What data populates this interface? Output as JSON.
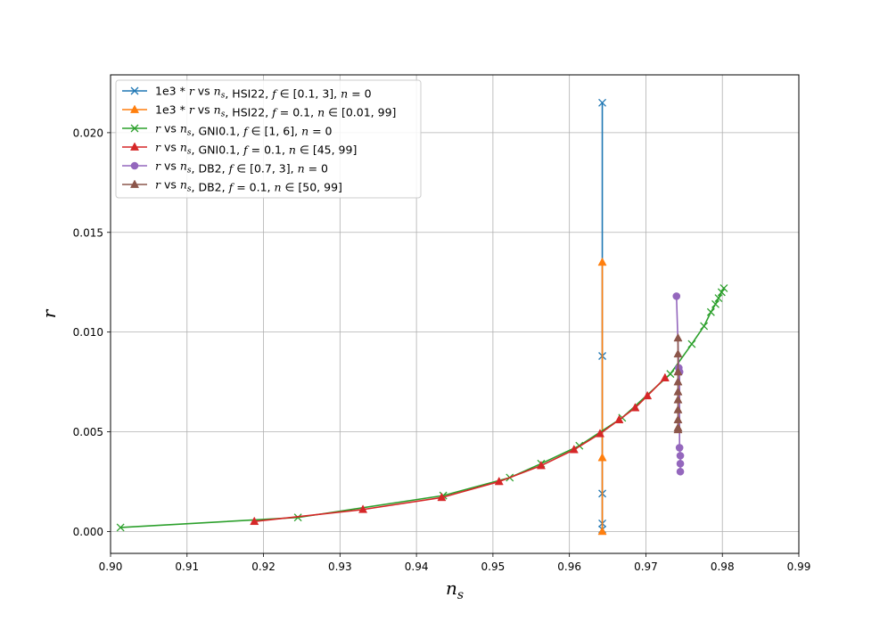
{
  "chart_data": {
    "type": "line",
    "title": "",
    "xlabel": "n",
    "xlabel_sub": "s",
    "ylabel": "r",
    "xlim": [
      0.9,
      0.99
    ],
    "ylim": [
      -0.0011,
      0.0229
    ],
    "xticks": [
      0.9,
      0.91,
      0.92,
      0.93,
      0.94,
      0.95,
      0.96,
      0.97,
      0.98,
      0.99
    ],
    "xtick_labels": [
      "0.90",
      "0.91",
      "0.92",
      "0.93",
      "0.94",
      "0.95",
      "0.96",
      "0.97",
      "0.98",
      "0.99"
    ],
    "yticks": [
      0.0,
      0.005,
      0.01,
      0.015,
      0.02
    ],
    "ytick_labels": [
      "0.000",
      "0.005",
      "0.010",
      "0.015",
      "0.020"
    ],
    "grid": true,
    "legend_position": "top-left",
    "series": [
      {
        "name": "1e3 * r vs n_s, HSI22, f ∈ [0.1, 3], n = 0",
        "color": "#1f77b4",
        "marker": "x",
        "x": [
          0.9643,
          0.9643,
          0.9643,
          0.9643,
          0.9643
        ],
        "y": [
          0.0215,
          0.0088,
          0.0019,
          0.0004,
          0.0001
        ]
      },
      {
        "name": "1e3 * r vs n_s, HSI22, f = 0.1, n ∈ [0.01, 99]",
        "color": "#ff7f0e",
        "marker": "triangle",
        "x": [
          0.9643,
          0.9643,
          0.9643
        ],
        "y": [
          0.0135,
          0.0037,
          0.0
        ]
      },
      {
        "name": "r vs n_s, GNI0.1, f ∈ [1, 6], n = 0",
        "color": "#2ca02c",
        "marker": "x",
        "x": [
          0.9013,
          0.9245,
          0.9435,
          0.9522,
          0.9563,
          0.9613,
          0.9669,
          0.9732,
          0.976,
          0.9776,
          0.9785,
          0.9791,
          0.9795,
          0.9799,
          0.9802
        ],
        "y": [
          0.0002,
          0.0007,
          0.0018,
          0.0027,
          0.0034,
          0.0043,
          0.0057,
          0.0079,
          0.0094,
          0.0103,
          0.011,
          0.0114,
          0.0117,
          0.012,
          0.0122
        ]
      },
      {
        "name": "r vs n_s, GNI0.1, f = 0.1, n ∈ [45, 99]",
        "color": "#d62728",
        "marker": "triangle",
        "x": [
          0.9188,
          0.933,
          0.9433,
          0.9508,
          0.9563,
          0.9606,
          0.964,
          0.9665,
          0.9686,
          0.9702,
          0.9725
        ],
        "y": [
          0.0005,
          0.0011,
          0.0017,
          0.0025,
          0.0033,
          0.0041,
          0.0049,
          0.0056,
          0.0062,
          0.0068,
          0.0077
        ]
      },
      {
        "name": "r vs n_s, DB2, f ∈ [0.7, 3], n = 0",
        "color": "#9467bd",
        "marker": "circle",
        "x": [
          0.974,
          0.9743,
          0.9744,
          0.9744,
          0.9745,
          0.9745,
          0.9745
        ],
        "y": [
          0.0118,
          0.0082,
          0.008,
          0.0042,
          0.0038,
          0.0034,
          0.003
        ]
      },
      {
        "name": "r vs n_s, DB2, f = 0.1, n ∈ [50, 99]",
        "color": "#8c564b",
        "marker": "triangle",
        "x": [
          0.9742,
          0.9742,
          0.9742,
          0.9742,
          0.9742,
          0.9742,
          0.9742,
          0.9742,
          0.9742,
          0.9742
        ],
        "y": [
          0.0097,
          0.0089,
          0.008,
          0.0075,
          0.007,
          0.0066,
          0.0061,
          0.0056,
          0.0052,
          0.0051
        ]
      }
    ],
    "legend": [
      [
        {
          "t": "1e3"
        },
        {
          "t": " * "
        },
        {
          "t": "r",
          "i": true
        },
        {
          "t": " vs "
        },
        {
          "t": "n",
          "i": true
        },
        {
          "t": "s",
          "i": true,
          "sub": true
        },
        {
          "t": ", HSI22, "
        },
        {
          "t": "f",
          "i": true
        },
        {
          "t": " ∈ [0.1, 3], "
        },
        {
          "t": "n",
          "i": true
        },
        {
          "t": " = 0"
        }
      ],
      [
        {
          "t": "1e3"
        },
        {
          "t": " * "
        },
        {
          "t": "r",
          "i": true
        },
        {
          "t": " vs "
        },
        {
          "t": "n",
          "i": true
        },
        {
          "t": "s",
          "i": true,
          "sub": true
        },
        {
          "t": ", HSI22, "
        },
        {
          "t": "f",
          "i": true
        },
        {
          "t": " = 0.1, "
        },
        {
          "t": "n",
          "i": true
        },
        {
          "t": " ∈ [0.01, 99]"
        }
      ],
      [
        {
          "t": "r",
          "i": true
        },
        {
          "t": " vs "
        },
        {
          "t": "n",
          "i": true
        },
        {
          "t": "s",
          "i": true,
          "sub": true
        },
        {
          "t": ", GNI0.1, "
        },
        {
          "t": "f",
          "i": true
        },
        {
          "t": " ∈ [1, 6], "
        },
        {
          "t": "n",
          "i": true
        },
        {
          "t": " = 0"
        }
      ],
      [
        {
          "t": "r",
          "i": true
        },
        {
          "t": " vs "
        },
        {
          "t": "n",
          "i": true
        },
        {
          "t": "s",
          "i": true,
          "sub": true
        },
        {
          "t": ", GNI0.1, "
        },
        {
          "t": "f",
          "i": true
        },
        {
          "t": " = 0.1, "
        },
        {
          "t": "n",
          "i": true
        },
        {
          "t": " ∈ [45, 99]"
        }
      ],
      [
        {
          "t": "r",
          "i": true
        },
        {
          "t": " vs "
        },
        {
          "t": "n",
          "i": true
        },
        {
          "t": "s",
          "i": true,
          "sub": true
        },
        {
          "t": ", DB2, "
        },
        {
          "t": "f",
          "i": true
        },
        {
          "t": " ∈ [0.7, 3], "
        },
        {
          "t": "n",
          "i": true
        },
        {
          "t": " = 0"
        }
      ],
      [
        {
          "t": "r",
          "i": true
        },
        {
          "t": " vs "
        },
        {
          "t": "n",
          "i": true
        },
        {
          "t": "s",
          "i": true,
          "sub": true
        },
        {
          "t": ", DB2, "
        },
        {
          "t": "f",
          "i": true
        },
        {
          "t": " = 0.1, "
        },
        {
          "t": "n",
          "i": true
        },
        {
          "t": " ∈ [50, 99]"
        }
      ]
    ]
  }
}
